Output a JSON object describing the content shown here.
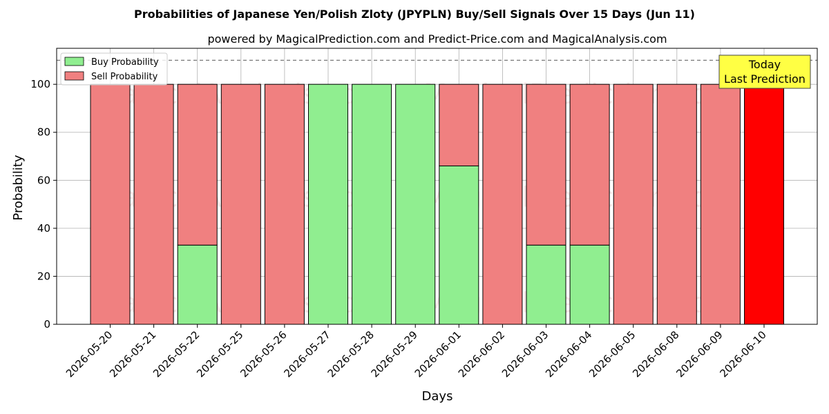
{
  "chart_data": {
    "type": "bar",
    "stacked": true,
    "title": "Probabilities of Japanese Yen/Polish Zloty (JPYPLN) Buy/Sell Signals Over 15 Days (Jun 11)",
    "subtitle": "powered by MagicalPrediction.com and Predict-Price.com and MagicalAnalysis.com",
    "xlabel": "Days",
    "ylabel": "Probability",
    "ylim": [
      0,
      115
    ],
    "yticks": [
      0,
      20,
      40,
      60,
      80,
      100
    ],
    "grid": true,
    "legend_position": "top-left",
    "reference_line": 110,
    "categories": [
      "2026-05-20",
      "2026-05-21",
      "2026-05-22",
      "2026-05-25",
      "2026-05-26",
      "2026-05-27",
      "2026-05-28",
      "2026-05-29",
      "2026-06-01",
      "2026-06-02",
      "2026-06-03",
      "2026-06-04",
      "2026-06-05",
      "2026-06-08",
      "2026-06-09",
      "2026-06-10"
    ],
    "series": [
      {
        "name": "Buy Probability",
        "color": "#90ee90",
        "values": [
          0,
          0,
          33,
          0,
          0,
          100,
          100,
          100,
          66,
          0,
          33,
          33,
          0,
          0,
          0,
          0
        ]
      },
      {
        "name": "Sell Probability",
        "color": "#f08080",
        "values": [
          100,
          100,
          67,
          100,
          100,
          0,
          0,
          0,
          34,
          100,
          67,
          67,
          100,
          100,
          100,
          100
        ]
      }
    ],
    "highlight": {
      "index": 15,
      "color": "#ff0000"
    },
    "annotation": {
      "line1": "Today",
      "line2": "Last Prediction",
      "color": "#ffff44"
    },
    "watermarks": [
      "MagicalAnalysis.com",
      "MagicalPrediction.com"
    ]
  }
}
